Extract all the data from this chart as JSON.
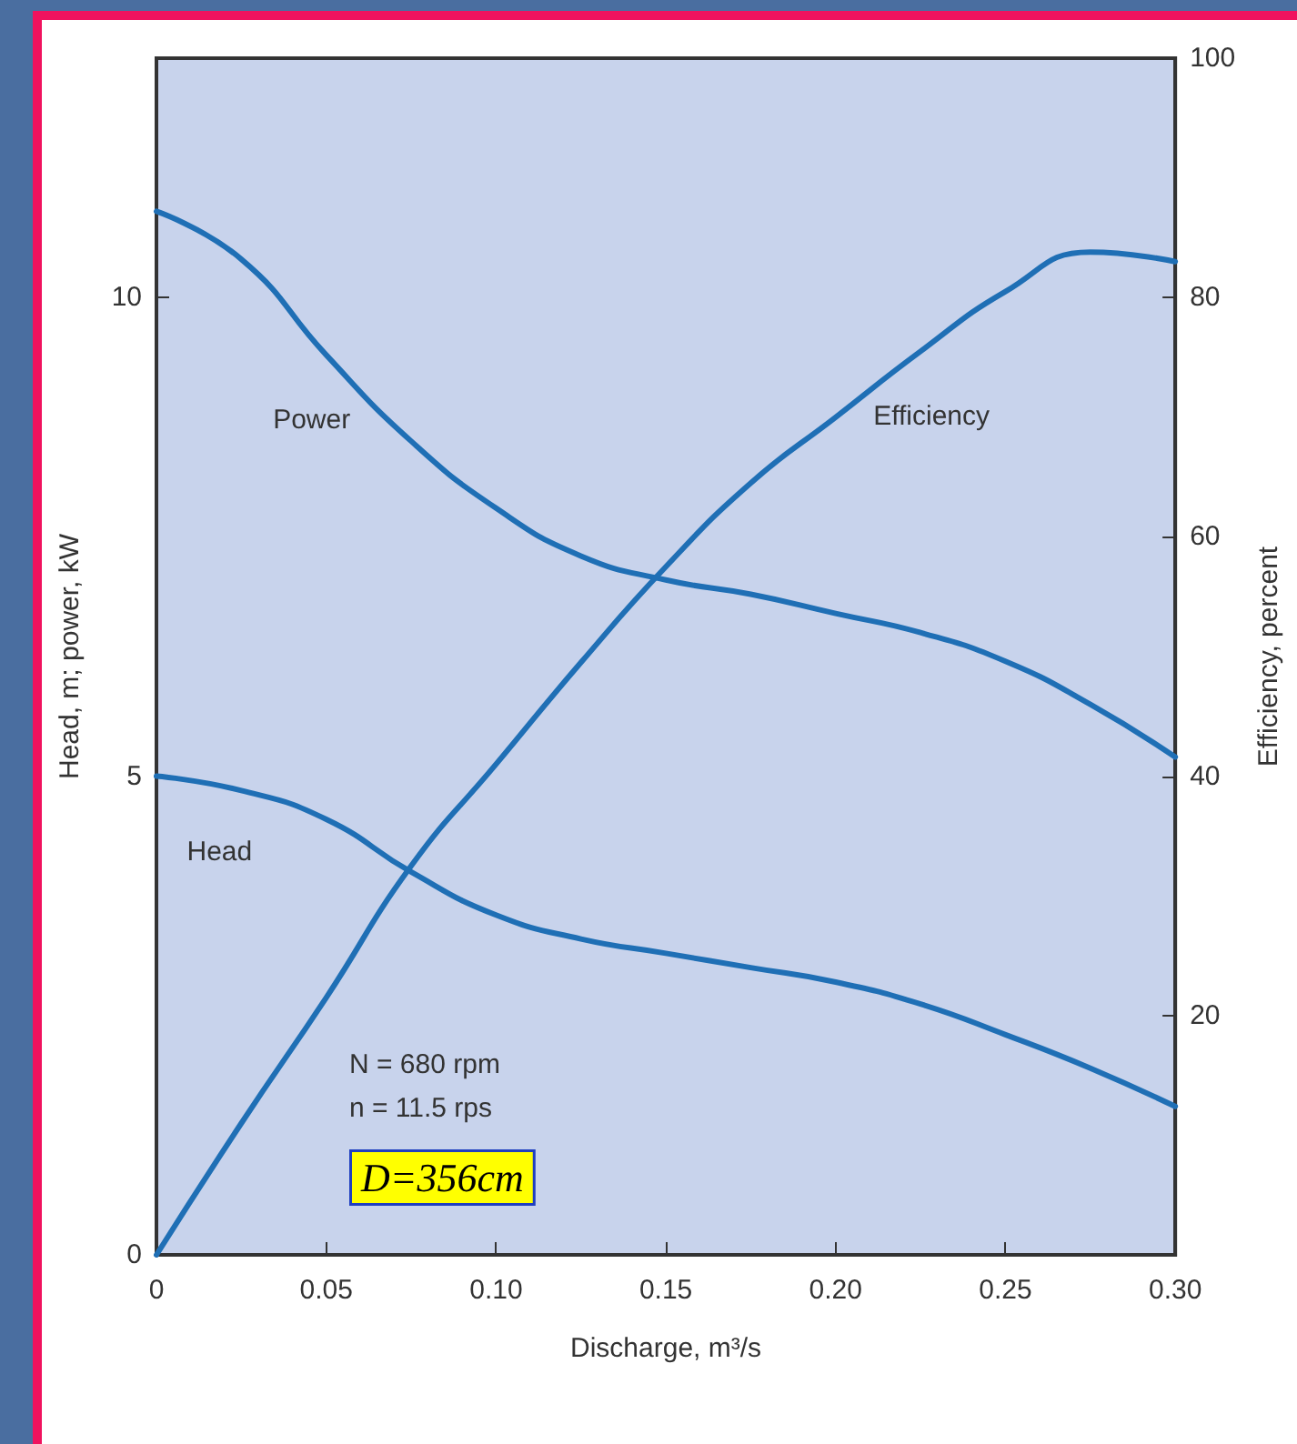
{
  "chart_data": {
    "type": "line",
    "xlabel": "Discharge, m³/s",
    "ylabel": "Head, m; power, kW",
    "y2label": "Efficiency, percent",
    "x": [
      0,
      0.025,
      0.05,
      0.075,
      0.1,
      0.125,
      0.15,
      0.175,
      0.2,
      0.225,
      0.25,
      0.275,
      0.3
    ],
    "series": [
      {
        "name": "Power",
        "color": "#1f6fb5",
        "values": [
          10.9,
          10.4,
          9.4,
          8.5,
          7.8,
          7.3,
          7.05,
          6.9,
          6.7,
          6.5,
          6.2,
          5.75,
          5.2
        ]
      },
      {
        "name": "Head",
        "color": "#1f6fb5",
        "values": [
          5.0,
          4.85,
          4.55,
          4.0,
          3.55,
          3.3,
          3.15,
          3.0,
          2.85,
          2.62,
          2.3,
          1.95,
          1.55
        ]
      },
      {
        "name": "Efficiency",
        "color": "#1f6fb5",
        "axis": "y2",
        "values": [
          0,
          11,
          21.5,
          32.5,
          41,
          49.5,
          57.5,
          64.5,
          70,
          75.5,
          80.5,
          83.8,
          83
        ]
      }
    ],
    "xlim": [
      0,
      0.3
    ],
    "xticks": [
      0,
      0.05,
      {
        "value": 0.1,
        "label": "0.10"
      },
      0.15,
      {
        "value": 0.2,
        "label": "0.20"
      },
      0.25,
      {
        "value": 0.3,
        "label": "0.30"
      }
    ],
    "ylim": [
      0,
      12.5
    ],
    "yticks": [
      0,
      5,
      10
    ],
    "y2lim": [
      0,
      100
    ],
    "y2ticks": [
      20,
      40,
      60,
      80,
      100
    ],
    "grid": false,
    "legend": false,
    "marker": "none",
    "line_style": "solid",
    "annotations": [
      "N = 680 rpm",
      "n = 11.5 rps",
      "D=356cm"
    ]
  }
}
